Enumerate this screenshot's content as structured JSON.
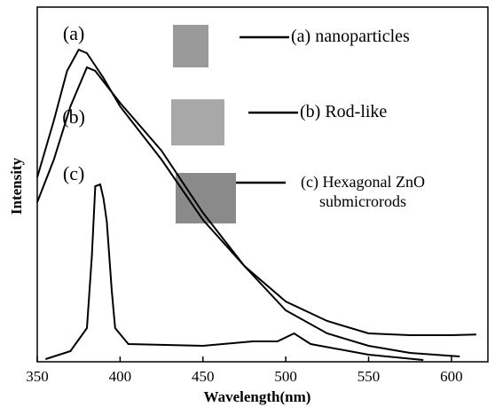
{
  "chart_data": {
    "type": "line",
    "xlabel": "Wavelength(nm)",
    "ylabel": "Intensity",
    "xlim": [
      350,
      622
    ],
    "ylim": [
      0,
      100
    ],
    "xticks": [
      350,
      400,
      450,
      500,
      550,
      600
    ],
    "series": [
      {
        "name": "(a) nanoparticles",
        "color": "#000000",
        "x": [
          350,
          360,
          368,
          375,
          380,
          390,
          400,
          425,
          450,
          475,
          500,
          525,
          550,
          575,
          600,
          615
        ],
        "values": [
          52,
          68,
          82,
          88,
          87,
          80,
          72,
          57,
          40,
          27,
          17,
          11.5,
          8,
          7.5,
          7.5,
          7.7
        ]
      },
      {
        "name": "(b) Rod-like",
        "color": "#000000",
        "x": [
          350,
          360,
          370,
          380,
          385,
          390,
          400,
          425,
          450,
          475,
          500,
          525,
          550,
          575,
          605
        ],
        "values": [
          45,
          57,
          72,
          83,
          82,
          79,
          73,
          59.5,
          42,
          27,
          14.5,
          8,
          4.5,
          2.5,
          1.5
        ]
      },
      {
        "name": "(c) Hexagonal ZnO submicrorods",
        "color": "#000000",
        "x": [
          355,
          370,
          380,
          383,
          385,
          388,
          390,
          392,
          395,
          397,
          405,
          450,
          480,
          495,
          505,
          515,
          550,
          583
        ],
        "values": [
          0.75,
          3,
          9.5,
          30,
          49.5,
          50,
          46,
          39.5,
          20,
          9.5,
          5,
          4.5,
          5.75,
          5.75,
          8,
          5,
          2,
          0.5
        ]
      }
    ],
    "annotations": [
      {
        "text": "(a)",
        "x": 372,
        "y": 92
      },
      {
        "text": "(b)",
        "x": 372,
        "y": 68.5
      },
      {
        "text": "(c)",
        "x": 372,
        "y": 52.5
      }
    ],
    "legend": "top-right"
  }
}
